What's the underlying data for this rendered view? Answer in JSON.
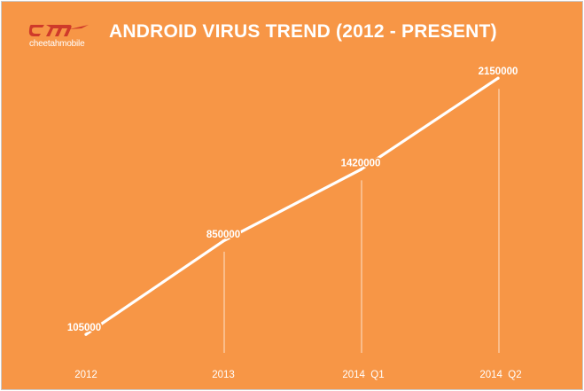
{
  "logo": {
    "wordmark": "cheetahmobile",
    "mark_text": "cm",
    "color": "#cf3a2a"
  },
  "chart_data": {
    "type": "line",
    "title": "ANDROID VIRUS TREND (2012 - PRESENT)",
    "categories": [
      "2012",
      "2013",
      "2014  Q1",
      "2014  Q2"
    ],
    "values": [
      105000,
      850000,
      1420000,
      2150000
    ],
    "data_labels": [
      "105000",
      "850000",
      "1420000",
      "2150000"
    ],
    "ylim": [
      0,
      2300000
    ],
    "grid": false,
    "legend": "none",
    "background_color": "#f79646",
    "line_color": "#ffffff",
    "text_color": "#ffffff"
  }
}
